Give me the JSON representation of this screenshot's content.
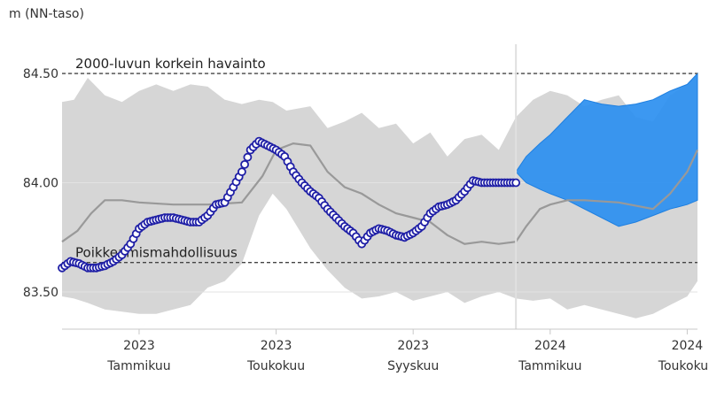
{
  "chart_data": {
    "type": "line",
    "y_axis_title": "m (NN-taso)",
    "ylim": [
      83.33,
      84.65
    ],
    "y_ticks": [
      {
        "value": 83.5,
        "label": "83.50"
      },
      {
        "value": 84.0,
        "label": "84.00"
      },
      {
        "value": 84.5,
        "label": "84.50"
      }
    ],
    "x_ticks": [
      {
        "year": "2023",
        "month": "Tammikuu",
        "x": 1.0
      },
      {
        "year": "2023",
        "month": "Toukokuu",
        "x": 5.0
      },
      {
        "year": "2023",
        "month": "Syyskuu",
        "x": 9.0
      },
      {
        "year": "2024",
        "month": "Tammikuu",
        "x": 13.0
      },
      {
        "year": "2024",
        "month": "Toukokuu",
        "x": 17.0
      }
    ],
    "xlim": [
      -1.25,
      17.3
    ],
    "forecast_start": 12.0,
    "reference_lines": [
      {
        "label": "2000-luvun korkein havainto",
        "value": 84.5
      },
      {
        "label": "Poikkeamismahdollisuus",
        "value": 83.635
      }
    ],
    "range_band": {
      "x": [
        -1.25,
        -0.9,
        -0.5,
        0.0,
        0.5,
        1.0,
        1.5,
        2.0,
        2.5,
        3.0,
        3.5,
        4.0,
        4.5,
        4.9,
        5.3,
        6.0,
        6.5,
        7.0,
        7.5,
        8.0,
        8.5,
        9.0,
        9.5,
        10.0,
        10.5,
        11.0,
        11.5,
        12.0,
        12.5,
        13.0,
        13.5,
        14.0,
        14.5,
        15.0,
        15.5,
        16.0,
        16.5,
        17.0,
        17.3
      ],
      "upper": [
        84.37,
        84.38,
        84.48,
        84.4,
        84.37,
        84.42,
        84.45,
        84.42,
        84.45,
        84.44,
        84.38,
        84.36,
        84.38,
        84.37,
        84.33,
        84.35,
        84.25,
        84.28,
        84.32,
        84.25,
        84.27,
        84.18,
        84.23,
        84.12,
        84.2,
        84.22,
        84.15,
        84.3,
        84.38,
        84.42,
        84.4,
        84.35,
        84.38,
        84.4,
        84.3,
        84.28,
        84.4,
        84.45,
        84.5
      ],
      "lower": [
        83.48,
        83.47,
        83.45,
        83.42,
        83.41,
        83.4,
        83.4,
        83.42,
        83.44,
        83.52,
        83.55,
        83.63,
        83.85,
        83.95,
        83.88,
        83.7,
        83.6,
        83.52,
        83.47,
        83.48,
        83.5,
        83.46,
        83.48,
        83.5,
        83.45,
        83.48,
        83.5,
        83.47,
        83.46,
        83.47,
        83.42,
        83.44,
        83.42,
        83.4,
        83.38,
        83.4,
        83.44,
        83.48,
        83.55
      ]
    },
    "series": [
      {
        "kind": "median",
        "color": "#999999",
        "x": [
          -1.25,
          -0.8,
          -0.4,
          0.0,
          0.5,
          1.0,
          2.0,
          3.0,
          4.0,
          4.6,
          5.0,
          5.5,
          6.0,
          6.5,
          7.0,
          7.5,
          8.0,
          8.5,
          9.0,
          9.5,
          10.0,
          10.5,
          11.0,
          11.5,
          12.0,
          12.3,
          12.7,
          13.0,
          13.5,
          14.0,
          15.0,
          16.0,
          16.5,
          17.0,
          17.3
        ],
        "values": [
          83.73,
          83.78,
          83.86,
          83.92,
          83.92,
          83.91,
          83.9,
          83.9,
          83.91,
          84.03,
          84.15,
          84.18,
          84.17,
          84.05,
          83.98,
          83.95,
          83.9,
          83.86,
          83.84,
          83.82,
          83.76,
          83.72,
          83.73,
          83.72,
          83.73,
          83.8,
          83.88,
          83.9,
          83.92,
          83.92,
          83.91,
          83.88,
          83.95,
          84.05,
          84.15
        ]
      },
      {
        "kind": "observed",
        "color": "#1f1fa6",
        "x": [
          -1.25,
          -1.0,
          -0.75,
          -0.5,
          -0.25,
          0.0,
          0.25,
          0.5,
          0.75,
          1.0,
          1.25,
          1.5,
          1.75,
          2.0,
          2.25,
          2.5,
          2.75,
          3.0,
          3.25,
          3.5,
          3.75,
          4.0,
          4.25,
          4.5,
          4.75,
          5.0,
          5.25,
          5.5,
          5.75,
          6.0,
          6.25,
          6.5,
          6.75,
          7.0,
          7.25,
          7.5,
          7.75,
          8.0,
          8.25,
          8.5,
          8.75,
          9.0,
          9.25,
          9.5,
          9.75,
          10.0,
          10.25,
          10.5,
          10.75,
          11.0,
          11.25,
          11.5,
          11.75,
          12.0
        ],
        "values": [
          83.61,
          83.64,
          83.63,
          83.61,
          83.61,
          83.62,
          83.64,
          83.67,
          83.72,
          83.79,
          83.82,
          83.83,
          83.84,
          83.84,
          83.83,
          83.82,
          83.82,
          83.85,
          83.9,
          83.91,
          83.98,
          84.05,
          84.15,
          84.19,
          84.17,
          84.15,
          84.12,
          84.05,
          84.0,
          83.96,
          83.93,
          83.88,
          83.84,
          83.8,
          83.77,
          83.72,
          83.77,
          83.79,
          83.78,
          83.76,
          83.75,
          83.77,
          83.8,
          83.86,
          83.89,
          83.9,
          83.92,
          83.96,
          84.01,
          84.0,
          84.0,
          84.0,
          84.0,
          84.0
        ]
      }
    ],
    "forecast_band": {
      "color": "#2b8ff0",
      "x": [
        12.0,
        12.3,
        12.7,
        13.0,
        13.5,
        14.0,
        14.5,
        15.0,
        15.5,
        16.0,
        16.5,
        17.0,
        17.3
      ],
      "upper": [
        84.05,
        84.12,
        84.18,
        84.22,
        84.3,
        84.38,
        84.36,
        84.35,
        84.36,
        84.38,
        84.42,
        84.45,
        84.5
      ],
      "lower": [
        84.05,
        84.0,
        83.97,
        83.95,
        83.92,
        83.88,
        83.84,
        83.8,
        83.82,
        83.85,
        83.88,
        83.9,
        83.92
      ]
    }
  }
}
